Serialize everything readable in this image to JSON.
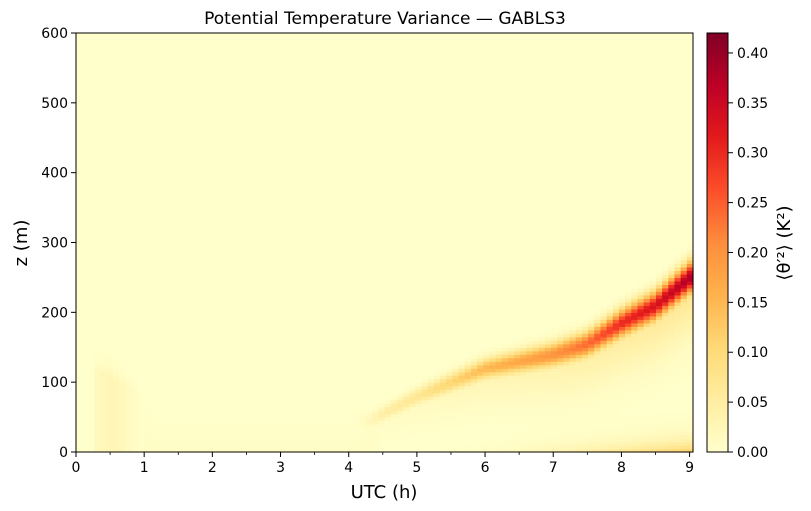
{
  "chart_data": {
    "type": "heatmap",
    "title": "Potential Temperature Variance — GABLS3",
    "xlabel": "UTC (h)",
    "ylabel": "z (m)",
    "colorbar_label": "⟨θ′²⟩ (K²)",
    "colormap": "YlOrRd",
    "color_stops": [
      "#ffffcc",
      "#ffeda0",
      "#fed976",
      "#feb24c",
      "#fd8d3c",
      "#fc4e2a",
      "#e31a1c",
      "#bd0026",
      "#800026"
    ],
    "xlim": [
      0,
      9.05
    ],
    "ylim": [
      0,
      600
    ],
    "clim": [
      0,
      0.42
    ],
    "x_ticks": [
      0,
      1,
      2,
      3,
      4,
      5,
      6,
      7,
      8,
      9
    ],
    "x_tick_labels": [
      "0",
      "1",
      "2",
      "3",
      "4",
      "5",
      "6",
      "7",
      "8",
      "9"
    ],
    "y_ticks": [
      0,
      100,
      200,
      300,
      400,
      500,
      600
    ],
    "y_tick_labels": [
      "0",
      "100",
      "200",
      "300",
      "400",
      "500",
      "600"
    ],
    "colorbar_ticks": [
      0,
      0.05,
      0.1,
      0.15,
      0.2,
      0.25,
      0.3,
      0.35,
      0.4
    ],
    "colorbar_tick_labels": [
      "0.00",
      "0.05",
      "0.10",
      "0.15",
      "0.20",
      "0.25",
      "0.30",
      "0.35",
      "0.40"
    ],
    "grid": false,
    "features": [
      {
        "name": "elevated variance layer",
        "time_utc": [
          4.3,
          5.0,
          6.0,
          7.0,
          7.5,
          8.0,
          8.5,
          9.0
        ],
        "height_m": [
          45,
          80,
          120,
          140,
          155,
          185,
          210,
          250
        ],
        "peak_variance": [
          0.04,
          0.07,
          0.15,
          0.2,
          0.24,
          0.3,
          0.33,
          0.38
        ]
      },
      {
        "name": "surface layer variance",
        "time_utc": [
          4.5,
          9.0
        ],
        "height_m_top": [
          10,
          15
        ],
        "peak_variance": [
          0.02,
          0.13
        ]
      },
      {
        "name": "early morning plume",
        "time_utc": [
          0.3,
          1.0
        ],
        "height_m_top": [
          120,
          80
        ],
        "peak_variance": [
          0.03,
          0.02
        ]
      }
    ]
  }
}
